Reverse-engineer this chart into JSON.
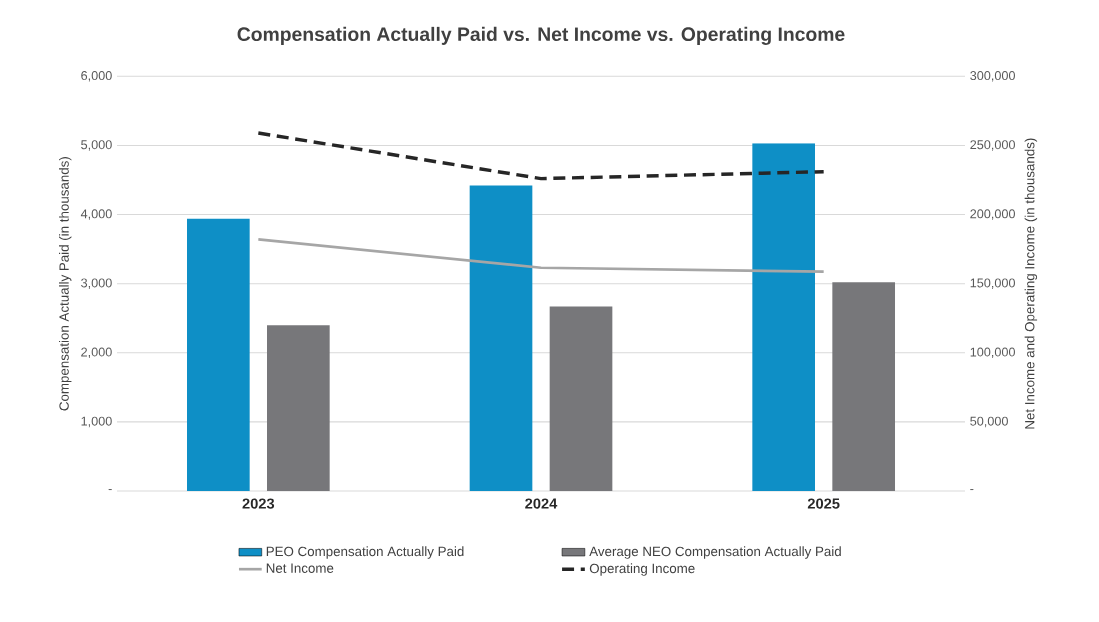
{
  "chart_data": {
    "type": "bar",
    "title": "Compensation Actually Paid vs. Net Income vs. Operating Income",
    "ylabel": "Compensation Actually Paid (in thousands)",
    "y2label": "Net Income and Operating Income (in thousands)",
    "categories": [
      "2023",
      "2024",
      "2025"
    ],
    "series": [
      {
        "name": "PEO Compensation Actually Paid",
        "color": "#0e8fc6",
        "values": [
          3940,
          4420,
          5030
        ]
      },
      {
        "name": "Average NEO Compensation Actually Paid",
        "color": "#77777a",
        "values": [
          2400,
          2670,
          3020
        ]
      },
      {
        "name": "Net Income",
        "type": "line",
        "axis": "y2",
        "color": "#a6a6a6",
        "line_style": "solid",
        "values": [
          182000,
          161500,
          158700
        ]
      },
      {
        "name": "Operating Income",
        "type": "line",
        "axis": "y2",
        "color": "#262626",
        "line_style": "dashed",
        "values": [
          259000,
          226000,
          231000
        ]
      }
    ],
    "ylim": [
      0,
      6000
    ],
    "yticks": [
      {
        "value": 0,
        "label": "-"
      },
      {
        "value": 1000,
        "label": "1,000"
      },
      {
        "value": 2000,
        "label": "2,000"
      },
      {
        "value": 3000,
        "label": "3,000"
      },
      {
        "value": 4000,
        "label": "4,000"
      },
      {
        "value": 5000,
        "label": "5,000"
      },
      {
        "value": 6000,
        "label": "6,000"
      }
    ],
    "y2lim": [
      0,
      300000
    ],
    "y2ticks": [
      {
        "value": 0,
        "label": "-"
      },
      {
        "value": 50000,
        "label": "50,000"
      },
      {
        "value": 100000,
        "label": "100,000"
      },
      {
        "value": 150000,
        "label": "150,000"
      },
      {
        "value": 200000,
        "label": "200,000"
      },
      {
        "value": 250000,
        "label": "250,000"
      },
      {
        "value": 300000,
        "label": "300,000"
      }
    ],
    "grid": "y",
    "legend": "bottom"
  }
}
